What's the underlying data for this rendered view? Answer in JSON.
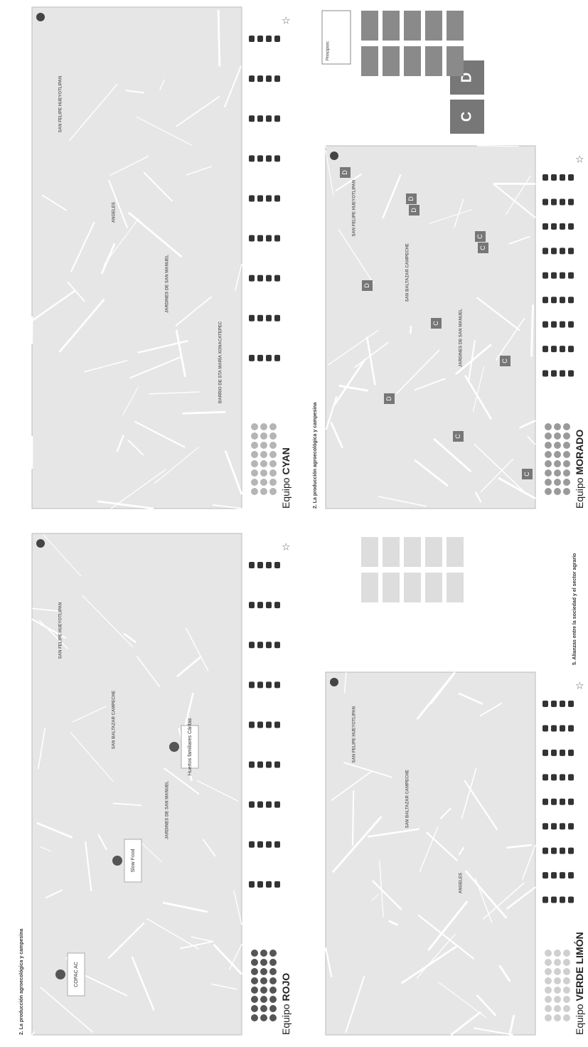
{
  "panels": [
    {
      "prefix": "Equipo",
      "team": "CYAN",
      "places": [
        "SAN FELIPE HUEYOTLIPAN",
        "ANGELES",
        "JARDINES DE SAN MANUEL",
        "BARRIO DE STA MARÍA XONACATEPEC"
      ]
    },
    {
      "prefix": "Equipo",
      "team": "MORADO",
      "heading": "2. La producción agroecológica y campesina",
      "note": "Principios:",
      "big_boxes": [
        "C",
        "D"
      ],
      "markers": [
        "D",
        "D",
        "C",
        "D",
        "C",
        "C",
        "D",
        "C",
        "C",
        "D",
        "C"
      ],
      "places": [
        "SAN FELIPE HUEYOTLIPAN",
        "SAN BALTAZAR CAMPECHE",
        "JARDINES DE SAN MANUEL"
      ]
    },
    {
      "prefix": "Equipo",
      "team": "ROJO",
      "heading": "2. La producción agroecológica y campesina",
      "labels": [
        "COPAC AC",
        "Slow Food",
        "Huertos familiares Cáritas"
      ],
      "places": [
        "SAN FELIPE HUEYOTLIPAN",
        "SAN BALTAZAR CAMPECHE",
        "JARDINES DE SAN MANUEL"
      ]
    },
    {
      "prefix": "Equipo",
      "team": "VERDE LIMÓN",
      "heading": "5. Alianzas entre la sociedad y el sector agrario",
      "places": [
        "SAN FELIPE HUEYOTLIPAN",
        "SAN BALTAZAR CAMPECHE",
        "ANGELES"
      ]
    }
  ]
}
